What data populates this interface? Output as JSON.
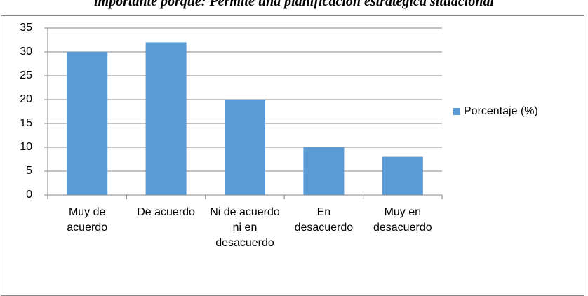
{
  "chart_data": {
    "type": "bar",
    "title": "importante porque: Permite una planificación estratégica situacional",
    "categories": [
      "Muy de acuerdo",
      "De acuerdo",
      "Ni de acuerdo ni en desacuerdo",
      "En desacuerdo",
      "Muy en desacuerdo"
    ],
    "series": [
      {
        "name": "Porcentaje (%)",
        "color": "#5b9bd5",
        "values": [
          30,
          32,
          20,
          10,
          8
        ]
      }
    ],
    "ylim": [
      0,
      35
    ],
    "yticks": [
      0,
      5,
      10,
      15,
      20,
      25,
      30,
      35
    ],
    "grid": true,
    "legend": "right"
  }
}
